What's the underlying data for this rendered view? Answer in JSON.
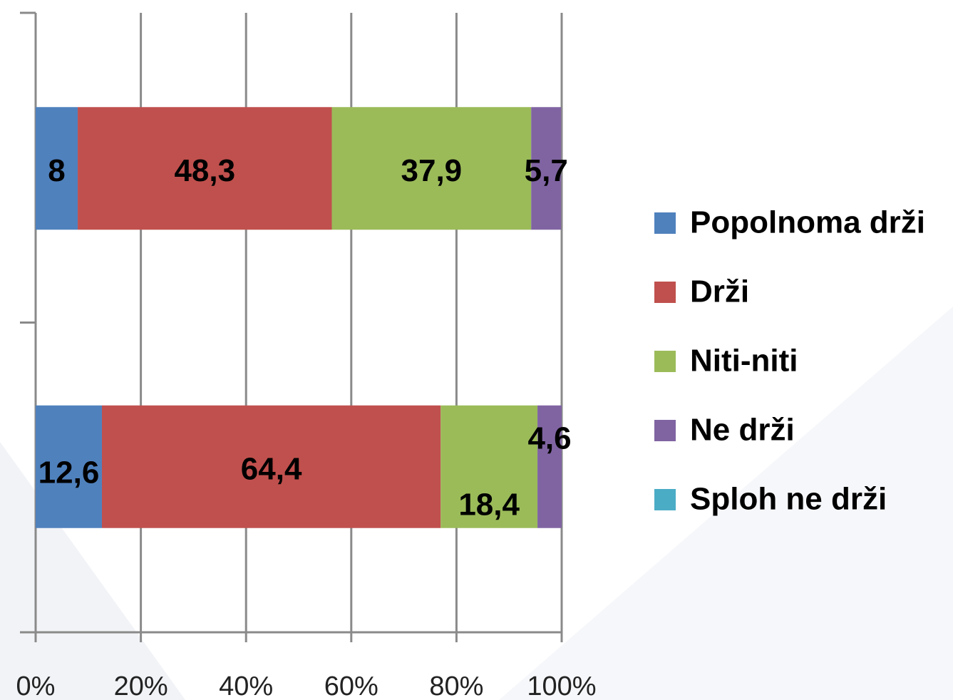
{
  "chart_data": {
    "type": "stacked_bar_horizontal",
    "categories": [
      null,
      null
    ],
    "series": [
      {
        "name": "Popolnoma drži",
        "color": "#4f81bd",
        "values": [
          8,
          12.6
        ],
        "value_labels": [
          "8",
          "12,6"
        ]
      },
      {
        "name": "Drži",
        "color": "#c0504d",
        "values": [
          48.3,
          64.4
        ],
        "value_labels": [
          "48,3",
          "64,4"
        ]
      },
      {
        "name": "Niti-niti",
        "color": "#9bbb59",
        "values": [
          37.9,
          18.4
        ],
        "value_labels": [
          "37,9",
          "18,4"
        ]
      },
      {
        "name": "Ne drži",
        "color": "#8064a2",
        "values": [
          5.7,
          4.6
        ],
        "value_labels": [
          "5,7",
          "4,6"
        ]
      },
      {
        "name": "Sploh ne drži",
        "color": "#4bacc6",
        "values": [
          0,
          0
        ]
      }
    ],
    "xlim": [
      0,
      100
    ],
    "xticks": [
      {
        "value": 0,
        "label": "0%"
      },
      {
        "value": 20,
        "label": "20%"
      },
      {
        "value": 40,
        "label": "40%"
      },
      {
        "value": 60,
        "label": "60%"
      },
      {
        "value": 80,
        "label": "80%"
      },
      {
        "value": 100,
        "label": "100%"
      }
    ],
    "grid": true,
    "legend": "right"
  }
}
